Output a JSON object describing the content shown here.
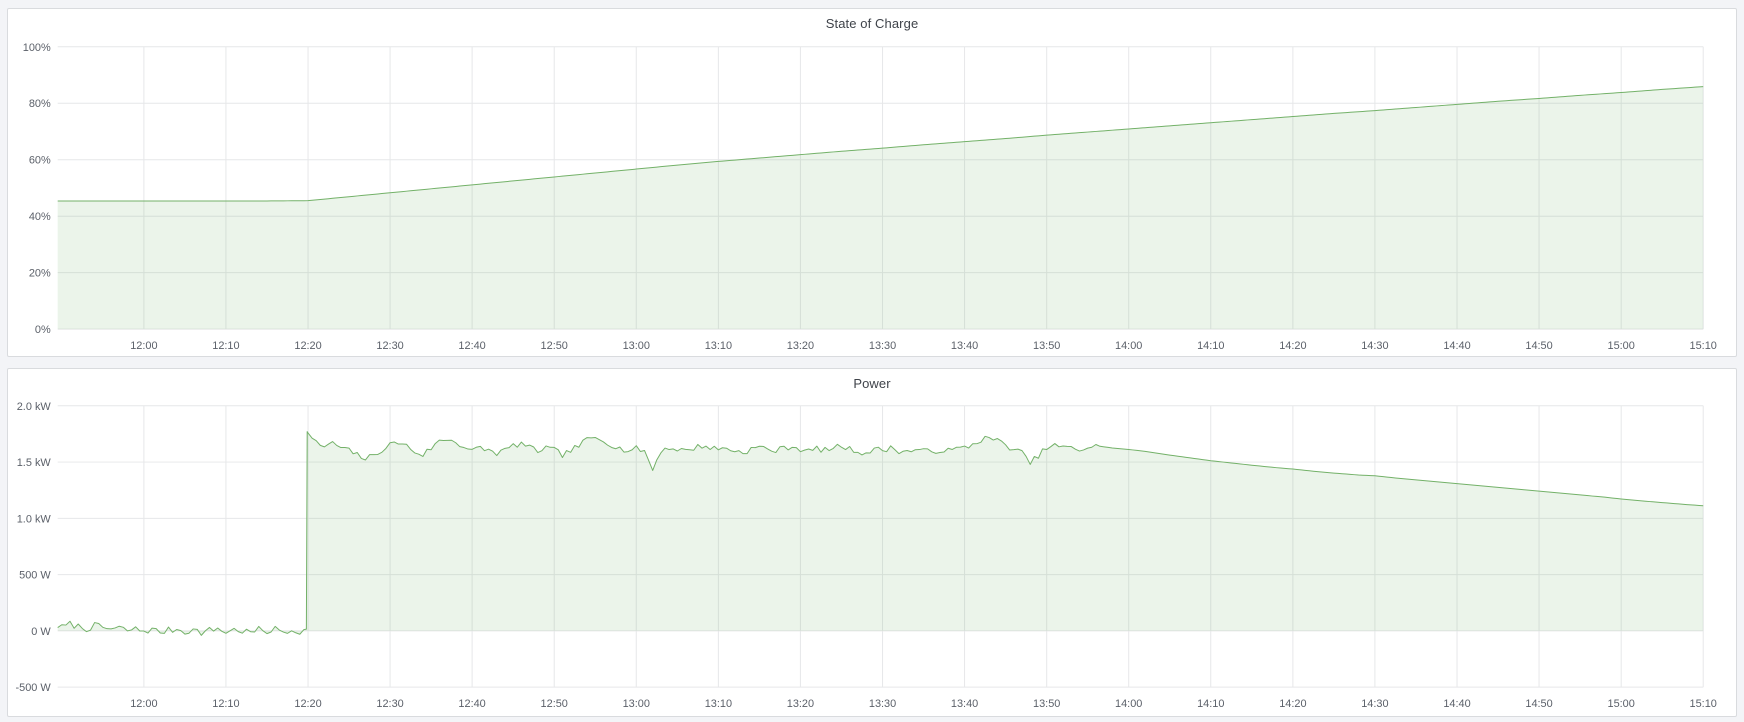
{
  "page": {
    "background_color": "#f3f4f7"
  },
  "chart_data": [
    {
      "type": "area",
      "title": "State of Charge",
      "color": "#73b168",
      "fill_opacity": 0.14,
      "legend_position": "none",
      "grid": true,
      "x_domain_min": 709.5,
      "x_domain_max": 910,
      "x_ticks": {
        "start_min": 720,
        "step_min": 10,
        "labels": [
          "12:00",
          "12:10",
          "12:20",
          "12:30",
          "12:40",
          "12:50",
          "13:00",
          "13:10",
          "13:20",
          "13:30",
          "13:40",
          "13:50",
          "14:00",
          "14:10",
          "14:20",
          "14:30",
          "14:40",
          "14:50",
          "15:00",
          "15:10"
        ]
      },
      "y_ticks": [
        {
          "v": 100,
          "label": "100%"
        },
        {
          "v": 80,
          "label": "80%"
        },
        {
          "v": 60,
          "label": "60%"
        },
        {
          "v": 40,
          "label": "40%"
        },
        {
          "v": 20,
          "label": "20%"
        },
        {
          "v": 0,
          "label": "0%"
        }
      ],
      "ylim": [
        0,
        100
      ],
      "baseline": 0,
      "points": [
        [
          709.5,
          45.4
        ],
        [
          715,
          45.4
        ],
        [
          720,
          45.4
        ],
        [
          725,
          45.4
        ],
        [
          730,
          45.4
        ],
        [
          735,
          45.4
        ],
        [
          740,
          45.5
        ],
        [
          745,
          46.9
        ],
        [
          750,
          48.3
        ],
        [
          755,
          49.7
        ],
        [
          760,
          51.1
        ],
        [
          765,
          52.5
        ],
        [
          770,
          53.9
        ],
        [
          775,
          55.3
        ],
        [
          780,
          56.7
        ],
        [
          785,
          58.1
        ],
        [
          790,
          59.4
        ],
        [
          795,
          60.6
        ],
        [
          800,
          61.8
        ],
        [
          805,
          63.0
        ],
        [
          810,
          64.1
        ],
        [
          815,
          65.3
        ],
        [
          820,
          66.4
        ],
        [
          825,
          67.5
        ],
        [
          830,
          68.7
        ],
        [
          835,
          69.8
        ],
        [
          840,
          70.9
        ],
        [
          845,
          72.0
        ],
        [
          850,
          73.1
        ],
        [
          855,
          74.2
        ],
        [
          860,
          75.3
        ],
        [
          865,
          76.4
        ],
        [
          870,
          77.4
        ],
        [
          875,
          78.5
        ],
        [
          880,
          79.6
        ],
        [
          885,
          80.7
        ],
        [
          890,
          81.7
        ],
        [
          895,
          82.8
        ],
        [
          900,
          83.8
        ],
        [
          905,
          84.9
        ],
        [
          910,
          85.9
        ]
      ],
      "noise_segments": [],
      "noise_seed": 11
    },
    {
      "type": "area",
      "title": "Power",
      "color": "#73b168",
      "fill_opacity": 0.14,
      "legend_position": "none",
      "grid": true,
      "x_domain_min": 709.5,
      "x_domain_max": 910,
      "x_ticks": {
        "start_min": 720,
        "step_min": 10,
        "labels": [
          "12:00",
          "12:10",
          "12:20",
          "12:30",
          "12:40",
          "12:50",
          "13:00",
          "13:10",
          "13:20",
          "13:30",
          "13:40",
          "13:50",
          "14:00",
          "14:10",
          "14:20",
          "14:30",
          "14:40",
          "14:50",
          "15:00",
          "15:10"
        ]
      },
      "y_ticks": [
        {
          "v": 2000,
          "label": "2.0 kW"
        },
        {
          "v": 1500,
          "label": "1.5 kW"
        },
        {
          "v": 1000,
          "label": "1.0 kW"
        },
        {
          "v": 500,
          "label": "500 W"
        },
        {
          "v": 0,
          "label": "0 W"
        },
        {
          "v": -500,
          "label": "-500 W"
        }
      ],
      "ylim": [
        -500,
        2000
      ],
      "baseline": 0,
      "points": [
        [
          709.5,
          45
        ],
        [
          710,
          30
        ],
        [
          711,
          60
        ],
        [
          712,
          40
        ],
        [
          713,
          20
        ],
        [
          714,
          45
        ],
        [
          715,
          30
        ],
        [
          716,
          15
        ],
        [
          717,
          25
        ],
        [
          718,
          5
        ],
        [
          719,
          15
        ],
        [
          720,
          0
        ],
        [
          721,
          10
        ],
        [
          722,
          -10
        ],
        [
          723,
          5
        ],
        [
          724,
          15
        ],
        [
          725,
          -5
        ],
        [
          726,
          10
        ],
        [
          727,
          -15
        ],
        [
          728,
          5
        ],
        [
          729,
          20
        ],
        [
          730,
          -10
        ],
        [
          731,
          10
        ],
        [
          732,
          0
        ],
        [
          733,
          -15
        ],
        [
          734,
          10
        ],
        [
          735,
          -5
        ],
        [
          736,
          15
        ],
        [
          737,
          -10
        ],
        [
          738,
          5
        ],
        [
          739,
          0
        ],
        [
          739.8,
          0
        ],
        [
          739.9,
          1770
        ],
        [
          740.5,
          1700
        ],
        [
          741,
          1670
        ],
        [
          742,
          1640
        ],
        [
          743,
          1665
        ],
        [
          744,
          1630
        ],
        [
          745,
          1600
        ],
        [
          746,
          1565
        ],
        [
          747,
          1530
        ],
        [
          748,
          1555
        ],
        [
          749,
          1610
        ],
        [
          750,
          1655
        ],
        [
          751,
          1675
        ],
        [
          752,
          1645
        ],
        [
          753,
          1590
        ],
        [
          754,
          1565
        ],
        [
          755,
          1625
        ],
        [
          756,
          1685
        ],
        [
          757,
          1705
        ],
        [
          758,
          1680
        ],
        [
          759,
          1635
        ],
        [
          760,
          1600
        ],
        [
          761,
          1625
        ],
        [
          762,
          1605
        ],
        [
          763,
          1580
        ],
        [
          764,
          1605
        ],
        [
          765,
          1645
        ],
        [
          766,
          1665
        ],
        [
          767,
          1625
        ],
        [
          768,
          1600
        ],
        [
          769,
          1625
        ],
        [
          770,
          1605
        ],
        [
          771,
          1565
        ],
        [
          772,
          1600
        ],
        [
          773,
          1645
        ],
        [
          774,
          1700
        ],
        [
          775,
          1715
        ],
        [
          776,
          1695
        ],
        [
          777,
          1655
        ],
        [
          778,
          1620
        ],
        [
          779,
          1600
        ],
        [
          780,
          1620
        ],
        [
          781,
          1600
        ],
        [
          782,
          1430
        ],
        [
          783,
          1605
        ],
        [
          784,
          1625
        ],
        [
          785,
          1615
        ],
        [
          786,
          1600
        ],
        [
          787,
          1625
        ],
        [
          788,
          1645
        ],
        [
          789,
          1630
        ],
        [
          790,
          1615
        ],
        [
          791,
          1625
        ],
        [
          792,
          1600
        ],
        [
          793,
          1585
        ],
        [
          794,
          1615
        ],
        [
          795,
          1635
        ],
        [
          796,
          1615
        ],
        [
          797,
          1600
        ],
        [
          798,
          1625
        ],
        [
          799,
          1640
        ],
        [
          800,
          1615
        ],
        [
          801,
          1595
        ],
        [
          802,
          1620
        ],
        [
          803,
          1605
        ],
        [
          804,
          1625
        ],
        [
          805,
          1645
        ],
        [
          806,
          1615
        ],
        [
          807,
          1595
        ],
        [
          808,
          1580
        ],
        [
          809,
          1615
        ],
        [
          810,
          1605
        ],
        [
          811,
          1625
        ],
        [
          812,
          1600
        ],
        [
          813,
          1590
        ],
        [
          814,
          1615
        ],
        [
          815,
          1600
        ],
        [
          816,
          1585
        ],
        [
          817,
          1610
        ],
        [
          818,
          1600
        ],
        [
          819,
          1615
        ],
        [
          820,
          1630
        ],
        [
          821,
          1655
        ],
        [
          822,
          1700
        ],
        [
          823,
          1715
        ],
        [
          824,
          1690
        ],
        [
          825,
          1650
        ],
        [
          826,
          1615
        ],
        [
          827,
          1580
        ],
        [
          828,
          1490
        ],
        [
          829,
          1560
        ],
        [
          830,
          1625
        ],
        [
          831,
          1645
        ],
        [
          832,
          1635
        ],
        [
          833,
          1620
        ],
        [
          834,
          1610
        ],
        [
          835,
          1630
        ],
        [
          836,
          1645
        ],
        [
          838,
          1625
        ],
        [
          840,
          1612
        ],
        [
          842,
          1595
        ],
        [
          845,
          1562
        ],
        [
          848,
          1532
        ],
        [
          850,
          1512
        ],
        [
          853,
          1488
        ],
        [
          855,
          1472
        ],
        [
          858,
          1450
        ],
        [
          860,
          1438
        ],
        [
          863,
          1415
        ],
        [
          865,
          1402
        ],
        [
          868,
          1385
        ],
        [
          870,
          1378
        ],
        [
          873,
          1355
        ],
        [
          875,
          1342
        ],
        [
          878,
          1322
        ],
        [
          880,
          1308
        ],
        [
          883,
          1288
        ],
        [
          885,
          1275
        ],
        [
          888,
          1255
        ],
        [
          890,
          1242
        ],
        [
          893,
          1222
        ],
        [
          895,
          1208
        ],
        [
          898,
          1188
        ],
        [
          900,
          1172
        ],
        [
          903,
          1152
        ],
        [
          905,
          1140
        ],
        [
          908,
          1122
        ],
        [
          910,
          1112
        ]
      ],
      "noise_segments": [
        {
          "from": 709.5,
          "to": 739.8,
          "amp": 30
        },
        {
          "from": 740.5,
          "to": 836,
          "amp": 26
        }
      ],
      "noise_seed": 7
    }
  ]
}
